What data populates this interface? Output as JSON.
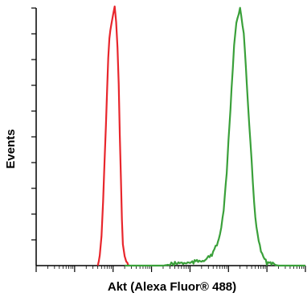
{
  "chart_data": {
    "type": "line",
    "xlabel": "Akt (Alexa Fluor® 488)",
    "ylabel": "Events",
    "xscale": "log",
    "xlim": [
      1,
      10000000
    ],
    "ylim": [
      0,
      100
    ],
    "grid": false,
    "legend": "none",
    "series": [
      {
        "color": "#e8262c",
        "x": [
          40,
          45,
          50,
          55,
          60,
          65,
          70,
          75,
          80,
          90,
          100,
          110,
          120,
          130,
          140,
          150,
          160,
          170,
          180,
          200,
          220,
          250
        ],
        "values": [
          0,
          4,
          12,
          25,
          40,
          55,
          68,
          80,
          88,
          94,
          98,
          100,
          95,
          85,
          70,
          50,
          33,
          18,
          9,
          3,
          1,
          0
        ]
      },
      {
        "color": "#3aa03a",
        "x": [
          200,
          500,
          1000,
          2000,
          5000,
          10000,
          20000,
          30000,
          40000,
          50000,
          60000,
          70000,
          80000,
          90000,
          100000,
          120000,
          140000,
          160000,
          200000,
          250000,
          300000,
          400000,
          500000,
          700000,
          1000000,
          2000000,
          5000000,
          10000000
        ],
        "values": [
          0,
          0,
          0,
          0,
          1,
          1,
          2,
          3,
          5,
          8,
          12,
          18,
          26,
          36,
          48,
          68,
          85,
          95,
          100,
          90,
          70,
          40,
          18,
          5,
          1,
          0,
          0,
          0
        ]
      }
    ]
  }
}
